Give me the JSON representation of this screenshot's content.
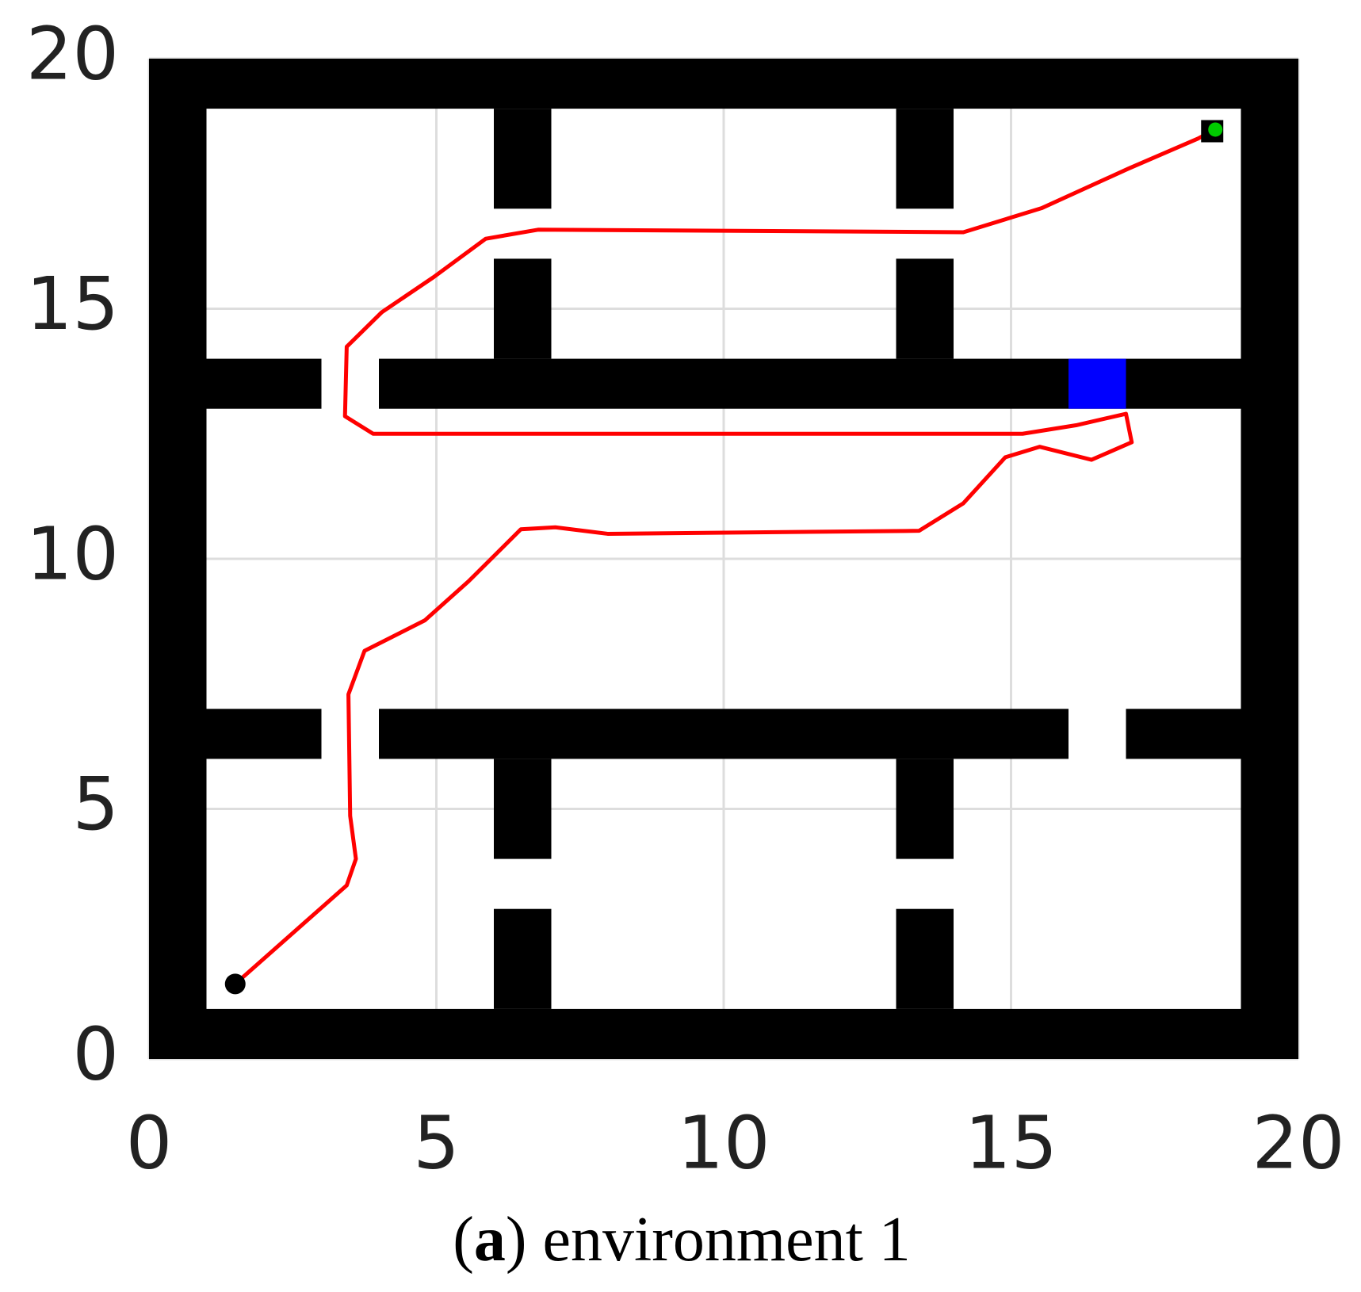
{
  "chart_data": {
    "type": "path",
    "caption": {
      "open": "(",
      "label": "a",
      "text": ") environment 1"
    },
    "xlim": [
      0,
      20
    ],
    "ylim": [
      0,
      20
    ],
    "xticks": [
      0,
      5,
      10,
      15,
      20
    ],
    "yticks": [
      0,
      5,
      10,
      15,
      20
    ],
    "grid": true,
    "wall_color": "#000000",
    "walls": [
      {
        "x": [
          0,
          20
        ],
        "y": [
          19,
          20
        ]
      },
      {
        "x": [
          0,
          20
        ],
        "y": [
          0,
          1
        ]
      },
      {
        "x": [
          0,
          1
        ],
        "y": [
          0,
          20
        ]
      },
      {
        "x": [
          19,
          20
        ],
        "y": [
          0,
          20
        ]
      },
      {
        "x": [
          1,
          3
        ],
        "y": [
          13,
          14
        ]
      },
      {
        "x": [
          4,
          19
        ],
        "y": [
          13,
          14
        ]
      },
      {
        "x": [
          1,
          3
        ],
        "y": [
          6,
          7
        ]
      },
      {
        "x": [
          4,
          16
        ],
        "y": [
          6,
          7
        ]
      },
      {
        "x": [
          17,
          19
        ],
        "y": [
          6,
          7
        ]
      },
      {
        "x": [
          6,
          7
        ],
        "y": [
          17,
          19
        ]
      },
      {
        "x": [
          13,
          14
        ],
        "y": [
          17,
          19
        ]
      },
      {
        "x": [
          6,
          7
        ],
        "y": [
          14,
          16
        ]
      },
      {
        "x": [
          13,
          14
        ],
        "y": [
          14,
          16
        ]
      },
      {
        "x": [
          6,
          7
        ],
        "y": [
          4,
          6
        ]
      },
      {
        "x": [
          13,
          14
        ],
        "y": [
          4,
          6
        ]
      },
      {
        "x": [
          6,
          7
        ],
        "y": [
          1,
          3
        ]
      },
      {
        "x": [
          13,
          14
        ],
        "y": [
          1,
          3
        ]
      }
    ],
    "block": {
      "x": [
        16,
        17
      ],
      "y": [
        13,
        14
      ],
      "color": "#0000ff"
    },
    "path": {
      "color": "#ff0000",
      "x": [
        1.5,
        3.44,
        3.6,
        3.5,
        3.47,
        3.75,
        4.8,
        5.56,
        6.47,
        7.07,
        7.98,
        13.4,
        14.17,
        14.9,
        15.5,
        16.4,
        17.1,
        17.0,
        16.13,
        15.2,
        3.9,
        3.41,
        3.44,
        4.05,
        4.95,
        5.86,
        6.77,
        14.17,
        15.53,
        17.04,
        18.25,
        18.5
      ],
      "y": [
        1.5,
        3.47,
        4.0,
        4.86,
        7.29,
        8.16,
        8.77,
        9.55,
        10.59,
        10.63,
        10.5,
        10.56,
        11.11,
        12.03,
        12.24,
        11.98,
        12.33,
        12.9,
        12.67,
        12.5,
        12.5,
        12.85,
        14.24,
        14.93,
        15.63,
        16.4,
        16.58,
        16.53,
        17.01,
        17.8,
        18.4,
        18.55
      ]
    },
    "start": {
      "x": 1.5,
      "y": 1.5,
      "color": "#000000"
    },
    "goal": {
      "x": 18.5,
      "y": 18.55,
      "color": "#00cc00"
    }
  }
}
